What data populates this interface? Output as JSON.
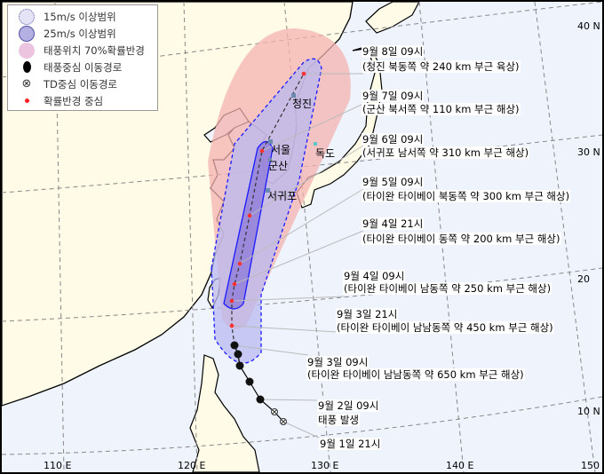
{
  "legend": {
    "items": [
      {
        "label": "15m/s 이상범위",
        "icon": "dashed-circle-light-purple"
      },
      {
        "label": "25m/s 이상범위",
        "icon": "solid-circle-purple"
      },
      {
        "label": "태풍위치 70%확률반경",
        "icon": "pink-circle"
      },
      {
        "label": "태풍중심 이동경로",
        "icon": "typhoon-symbol"
      },
      {
        "label": "TD중심 이동경로",
        "icon": "circled-x"
      },
      {
        "label": "확률반경 중심",
        "icon": "red-dot"
      }
    ]
  },
  "forecasts": [
    {
      "time": "9월 8일 09시",
      "desc": "(청진 북동쪽 약 240 km 부근 육상)"
    },
    {
      "time": "9월 7일 09시",
      "desc": "(군산 북서쪽 약 110 km 부근 해상)"
    },
    {
      "time": "9월 6일 09시",
      "desc": "(서귀포 남서쪽 약 310 km 부근 해상)"
    },
    {
      "time": "9월 5일 09시",
      "desc": "(타이완 타이베이 북동쪽 약 300 km 부근 해상)"
    },
    {
      "time": "9월 4일 21시",
      "desc": "(타이완 타이베이 동쪽 약 200 km 부근 해상)"
    },
    {
      "time": "9월 4일 09시",
      "desc": "(타이완 타이베이 남동쪽 약 250 km 부근 해상)"
    },
    {
      "time": "9월 3일 21시",
      "desc": "(타이완 타이베이 남남동쪽 약 450 km 부근 해상)"
    },
    {
      "time": "9월 3일 09시",
      "desc": "(타이완 타이베이 남남동쪽 약 650 km 부근 해상)"
    },
    {
      "time": "9월 2일 09시",
      "desc": "태풍 발생"
    },
    {
      "time": "9월 1일 21시",
      "desc": ""
    }
  ],
  "places": [
    "청진",
    "서울",
    "군산",
    "서귀포",
    "독도"
  ],
  "axes": {
    "lon": [
      "110 E",
      "120 E",
      "130 E",
      "140 E",
      "150"
    ],
    "lat": [
      "40 N",
      "30 N",
      "20",
      "10 N"
    ]
  },
  "colors": {
    "ocean": "#eef3fc",
    "land": "#fffbe6",
    "cone_15ms": "#b9b9f0",
    "cone_25ms": "#8c78d8",
    "prob_70": "#f4b2b0",
    "center_dot": "#ff3030",
    "outline": "#1a1aff"
  }
}
